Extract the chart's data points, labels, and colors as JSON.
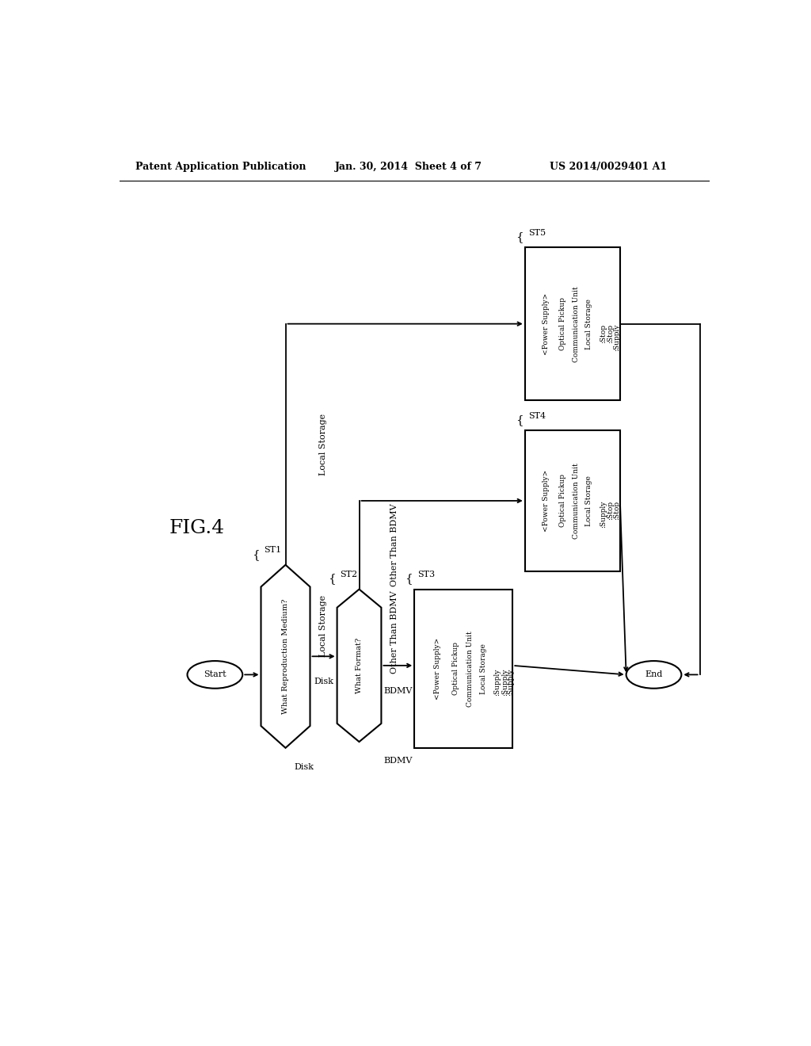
{
  "header_left": "Patent Application Publication",
  "header_center": "Jan. 30, 2014  Sheet 4 of 7",
  "header_right": "US 2014/0029401 A1",
  "fig_label": "FIG.4",
  "start_label": "Start",
  "end_label": "End",
  "d1_label": "What Reproduction Medium?",
  "d1_tag": "ST1",
  "d1_out_right": "Disk",
  "d1_out_top": "Local Storage",
  "d2_label": "What Format?",
  "d2_tag": "ST2",
  "d2_out_right": "BDMV",
  "d2_out_top": "Other Than BDMV",
  "box3_tag": "ST3",
  "box3_header": "<Power Supply>",
  "box3_rows": [
    [
      "Optical Pickup",
      ":Supply"
    ],
    [
      "Communication Unit",
      ":Supply"
    ],
    [
      "Local Storage",
      ":Supply"
    ]
  ],
  "box4_tag": "ST4",
  "box4_header": "<Power Supply>",
  "box4_rows": [
    [
      "Optical Pickup",
      ":Supply"
    ],
    [
      "Communication Unit",
      ":Stop"
    ],
    [
      "Local Storage",
      ":Stop"
    ]
  ],
  "box5_tag": "ST5",
  "box5_header": "<Power Supply>",
  "box5_rows": [
    [
      "Optical Pickup",
      ":Stop"
    ],
    [
      "Communication Unit",
      ":Stop"
    ],
    [
      "Local Storage",
      ":Supply"
    ]
  ]
}
